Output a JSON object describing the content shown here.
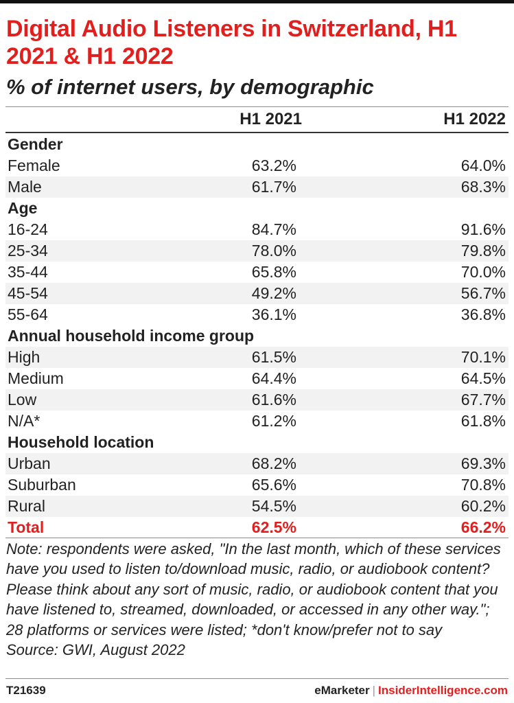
{
  "header": {
    "title": "Digital Audio Listeners in Switzerland, H1 2021 & H1 2022",
    "subtitle": "% of internet users, by demographic"
  },
  "chart_data": {
    "type": "table",
    "columns": [
      "",
      "H1 2021",
      "H1 2022"
    ],
    "rows": [
      {
        "kind": "group",
        "label": "Gender"
      },
      {
        "kind": "data",
        "label": "Female",
        "h1_2021": "63.2%",
        "h1_2022": "64.0%"
      },
      {
        "kind": "data",
        "label": "Male",
        "h1_2021": "61.7%",
        "h1_2022": "68.3%"
      },
      {
        "kind": "group",
        "label": "Age"
      },
      {
        "kind": "data",
        "label": "16-24",
        "h1_2021": "84.7%",
        "h1_2022": "91.6%"
      },
      {
        "kind": "data",
        "label": "25-34",
        "h1_2021": "78.0%",
        "h1_2022": "79.8%"
      },
      {
        "kind": "data",
        "label": "35-44",
        "h1_2021": "65.8%",
        "h1_2022": "70.0%"
      },
      {
        "kind": "data",
        "label": "45-54",
        "h1_2021": "49.2%",
        "h1_2022": "56.7%"
      },
      {
        "kind": "data",
        "label": "55-64",
        "h1_2021": "36.1%",
        "h1_2022": "36.8%"
      },
      {
        "kind": "group",
        "label": "Annual household income group"
      },
      {
        "kind": "data",
        "label": "High",
        "h1_2021": "61.5%",
        "h1_2022": "70.1%"
      },
      {
        "kind": "data",
        "label": "Medium",
        "h1_2021": "64.4%",
        "h1_2022": "64.5%"
      },
      {
        "kind": "data",
        "label": "Low",
        "h1_2021": "61.6%",
        "h1_2022": "67.7%"
      },
      {
        "kind": "data",
        "label": "N/A*",
        "h1_2021": "61.2%",
        "h1_2022": "61.8%"
      },
      {
        "kind": "group",
        "label": "Household location"
      },
      {
        "kind": "data",
        "label": "Urban",
        "h1_2021": "68.2%",
        "h1_2022": "69.3%"
      },
      {
        "kind": "data",
        "label": "Suburban",
        "h1_2021": "65.6%",
        "h1_2022": "70.8%"
      },
      {
        "kind": "data",
        "label": "Rural",
        "h1_2021": "54.5%",
        "h1_2022": "60.2%"
      },
      {
        "kind": "total",
        "label": "Total",
        "h1_2021": "62.5%",
        "h1_2022": "66.2%"
      }
    ]
  },
  "note": "Note: respondents were asked, \"In the last month, which of these services have you used to listen to/download music, radio, or audiobook content? Please think about any sort of music, radio, or audiobook content that you have listened to, streamed, downloaded, or accessed in any other way.\"; 28 platforms or services were listed; *don't know/prefer not to say",
  "source": "Source: GWI, August 2022",
  "footer": {
    "chart_id": "T21639",
    "brand": "eMarketer",
    "separator": "|",
    "brand2": "InsiderIntelligence.com"
  },
  "colors": {
    "accent": "#e0201f",
    "row_shade": "#f2f2f2",
    "text": "#222222"
  }
}
